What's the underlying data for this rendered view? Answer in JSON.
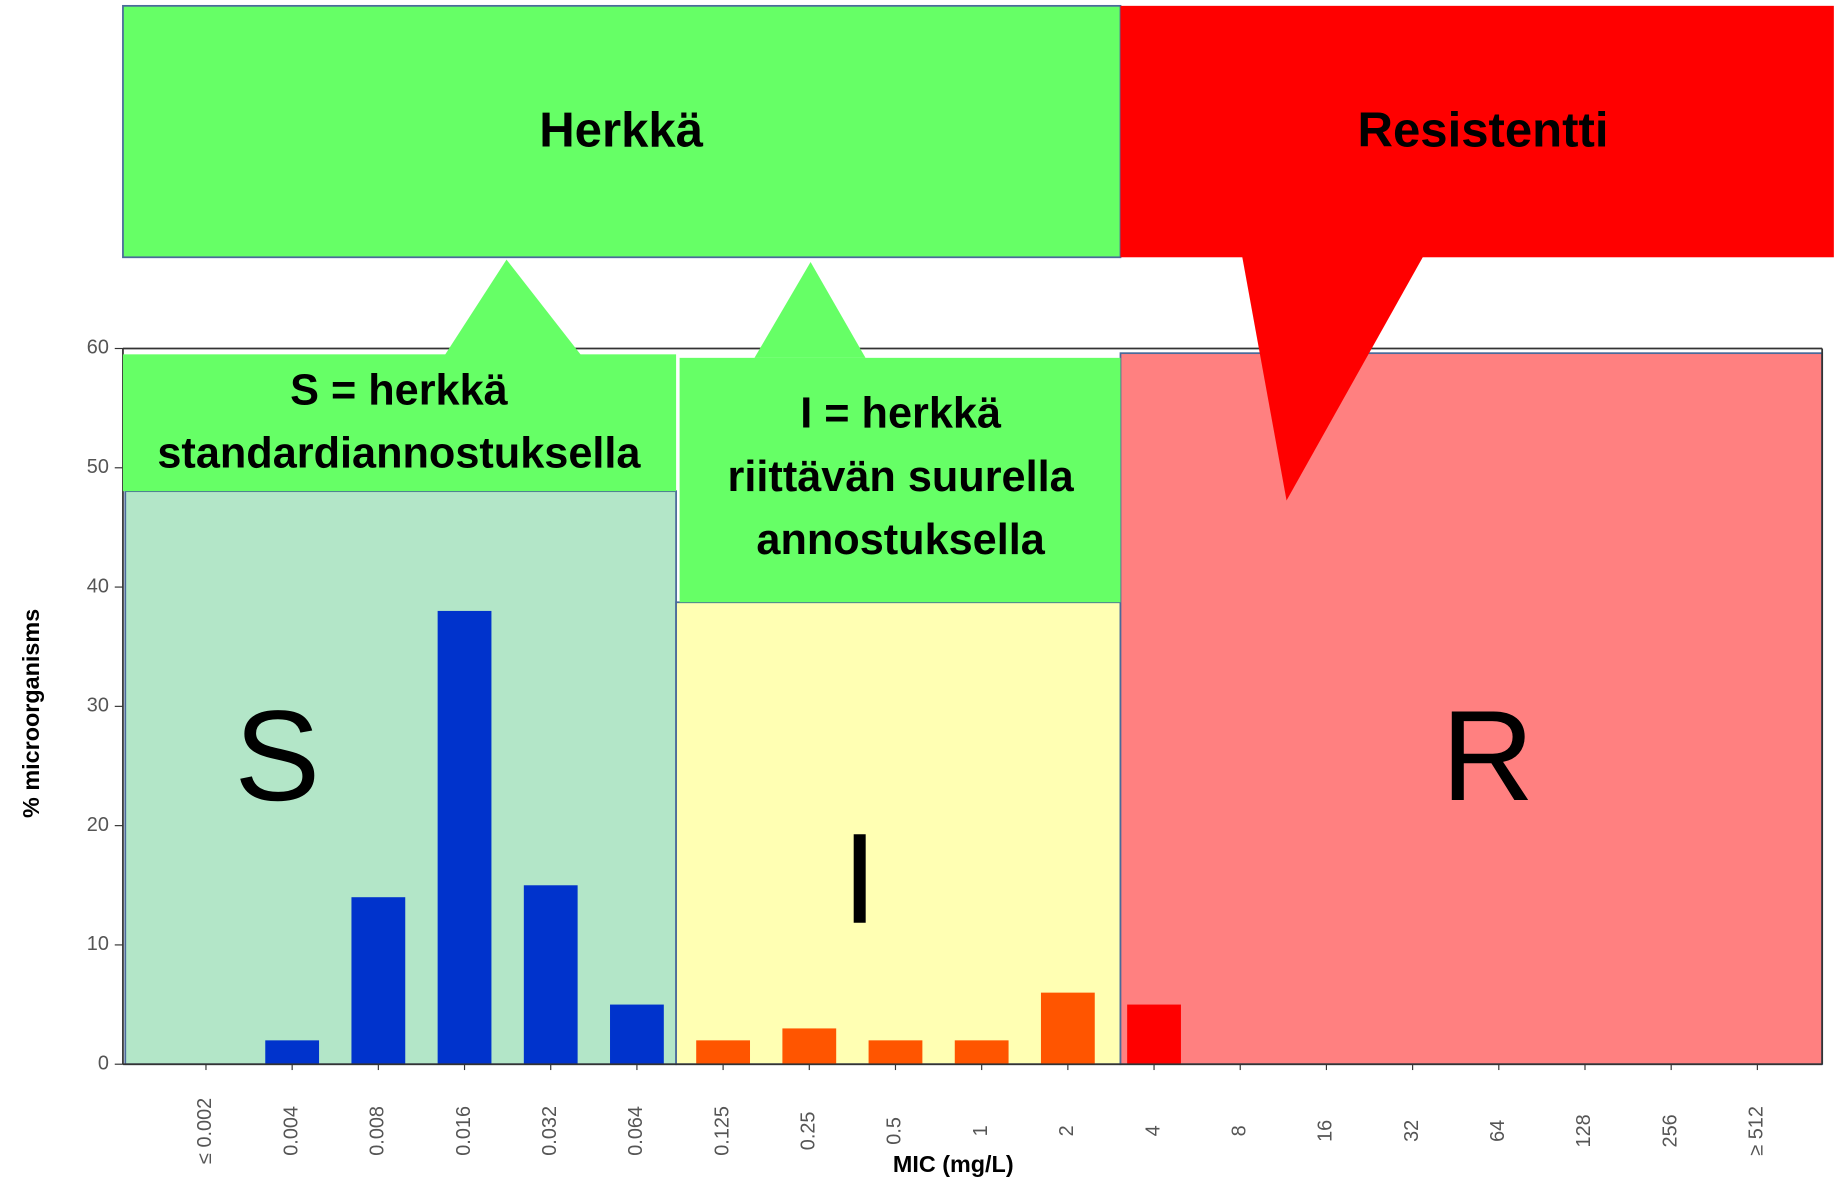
{
  "chart_data": {
    "type": "bar",
    "categories": [
      "≤ 0.002",
      "0.004",
      "0.008",
      "0.016",
      "0.032",
      "0.064",
      "0.125",
      "0.25",
      "0.5",
      "1",
      "2",
      "4",
      "8",
      "16",
      "32",
      "64",
      "128",
      "256",
      "≥ 512"
    ],
    "values": [
      0,
      2,
      14,
      38,
      15,
      5,
      2,
      3,
      2,
      2,
      6,
      5,
      0,
      0,
      0,
      0,
      0,
      0,
      0
    ],
    "colors": [
      "#0033cc",
      "#0033cc",
      "#0033cc",
      "#0033cc",
      "#0033cc",
      "#0033cc",
      "#ff5500",
      "#ff5500",
      "#ff5500",
      "#ff5500",
      "#ff5500",
      "#ff0000",
      "#ff0000",
      "#ff0000",
      "#ff0000",
      "#ff0000",
      "#ff0000",
      "#ff0000",
      "#ff0000"
    ],
    "ylim": [
      0,
      60
    ],
    "yticks": [
      0,
      10,
      20,
      30,
      40,
      50,
      60
    ],
    "y_label": "% microorganisms",
    "x_label": "MIC (mg/L)",
    "annotations": {
      "susceptible_header": "Herkkä",
      "resistant_header": "Resistentti",
      "s_box": [
        "S = herkkä",
        "standardiannostuksella"
      ],
      "i_box": [
        "I = herkkä",
        "riittävän suurella",
        "annostuksella"
      ],
      "s_letter": "S",
      "i_letter": "I",
      "r_letter": "R"
    }
  }
}
